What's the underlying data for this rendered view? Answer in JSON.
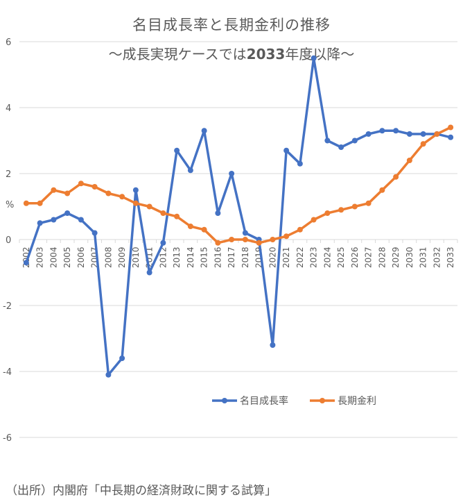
{
  "chart_data": {
    "type": "line",
    "title": "名目成長率と長期金利の推移",
    "subtitle": "～成長実現ケースでは2033年度以降～",
    "xlabel": "",
    "ylabel": "%",
    "ylim": [
      -6,
      6
    ],
    "yticks": [
      6,
      4,
      2,
      0,
      -2,
      -4,
      -6
    ],
    "grid": true,
    "legend_position": "bottom",
    "categories": [
      "2002",
      "2003",
      "2004",
      "2005",
      "2006",
      "2007",
      "2008",
      "2009",
      "2010",
      "2011",
      "2012",
      "2013",
      "2014",
      "2015",
      "2016",
      "2017",
      "2018",
      "2019",
      "2020",
      "2021",
      "2022",
      "2023",
      "2024",
      "2025",
      "2026",
      "2027",
      "2028",
      "2029",
      "2030",
      "2031",
      "2032",
      "2033"
    ],
    "series": [
      {
        "name": "名目成長率",
        "color": "#4472C4",
        "values": [
          -0.7,
          0.5,
          0.6,
          0.8,
          0.6,
          0.2,
          -4.1,
          -3.6,
          1.5,
          -1.0,
          -0.1,
          2.7,
          2.1,
          3.3,
          0.8,
          2.0,
          0.2,
          0.0,
          -3.2,
          2.7,
          2.3,
          5.5,
          3.0,
          2.8,
          3.0,
          3.2,
          3.3,
          3.3,
          3.2,
          3.2,
          3.2,
          3.1
        ]
      },
      {
        "name": "長期金利",
        "color": "#ED7D31",
        "values": [
          1.1,
          1.1,
          1.5,
          1.4,
          1.7,
          1.6,
          1.4,
          1.3,
          1.1,
          1.0,
          0.8,
          0.7,
          0.4,
          0.3,
          -0.1,
          0.0,
          0.0,
          -0.1,
          0.0,
          0.1,
          0.3,
          0.6,
          0.8,
          0.9,
          1.0,
          1.1,
          1.5,
          1.9,
          2.4,
          2.9,
          3.2,
          3.4
        ]
      }
    ]
  },
  "header": {
    "title": "名目成長率と長期金利の推移",
    "subtitle_prefix": "～成長実現ケースでは",
    "subtitle_year": "2033",
    "subtitle_suffix": "年度以降～"
  },
  "axis": {
    "y_unit": "%"
  },
  "footer": {
    "source": "（出所）内閣府「中長期の経済財政に関する試算」"
  }
}
